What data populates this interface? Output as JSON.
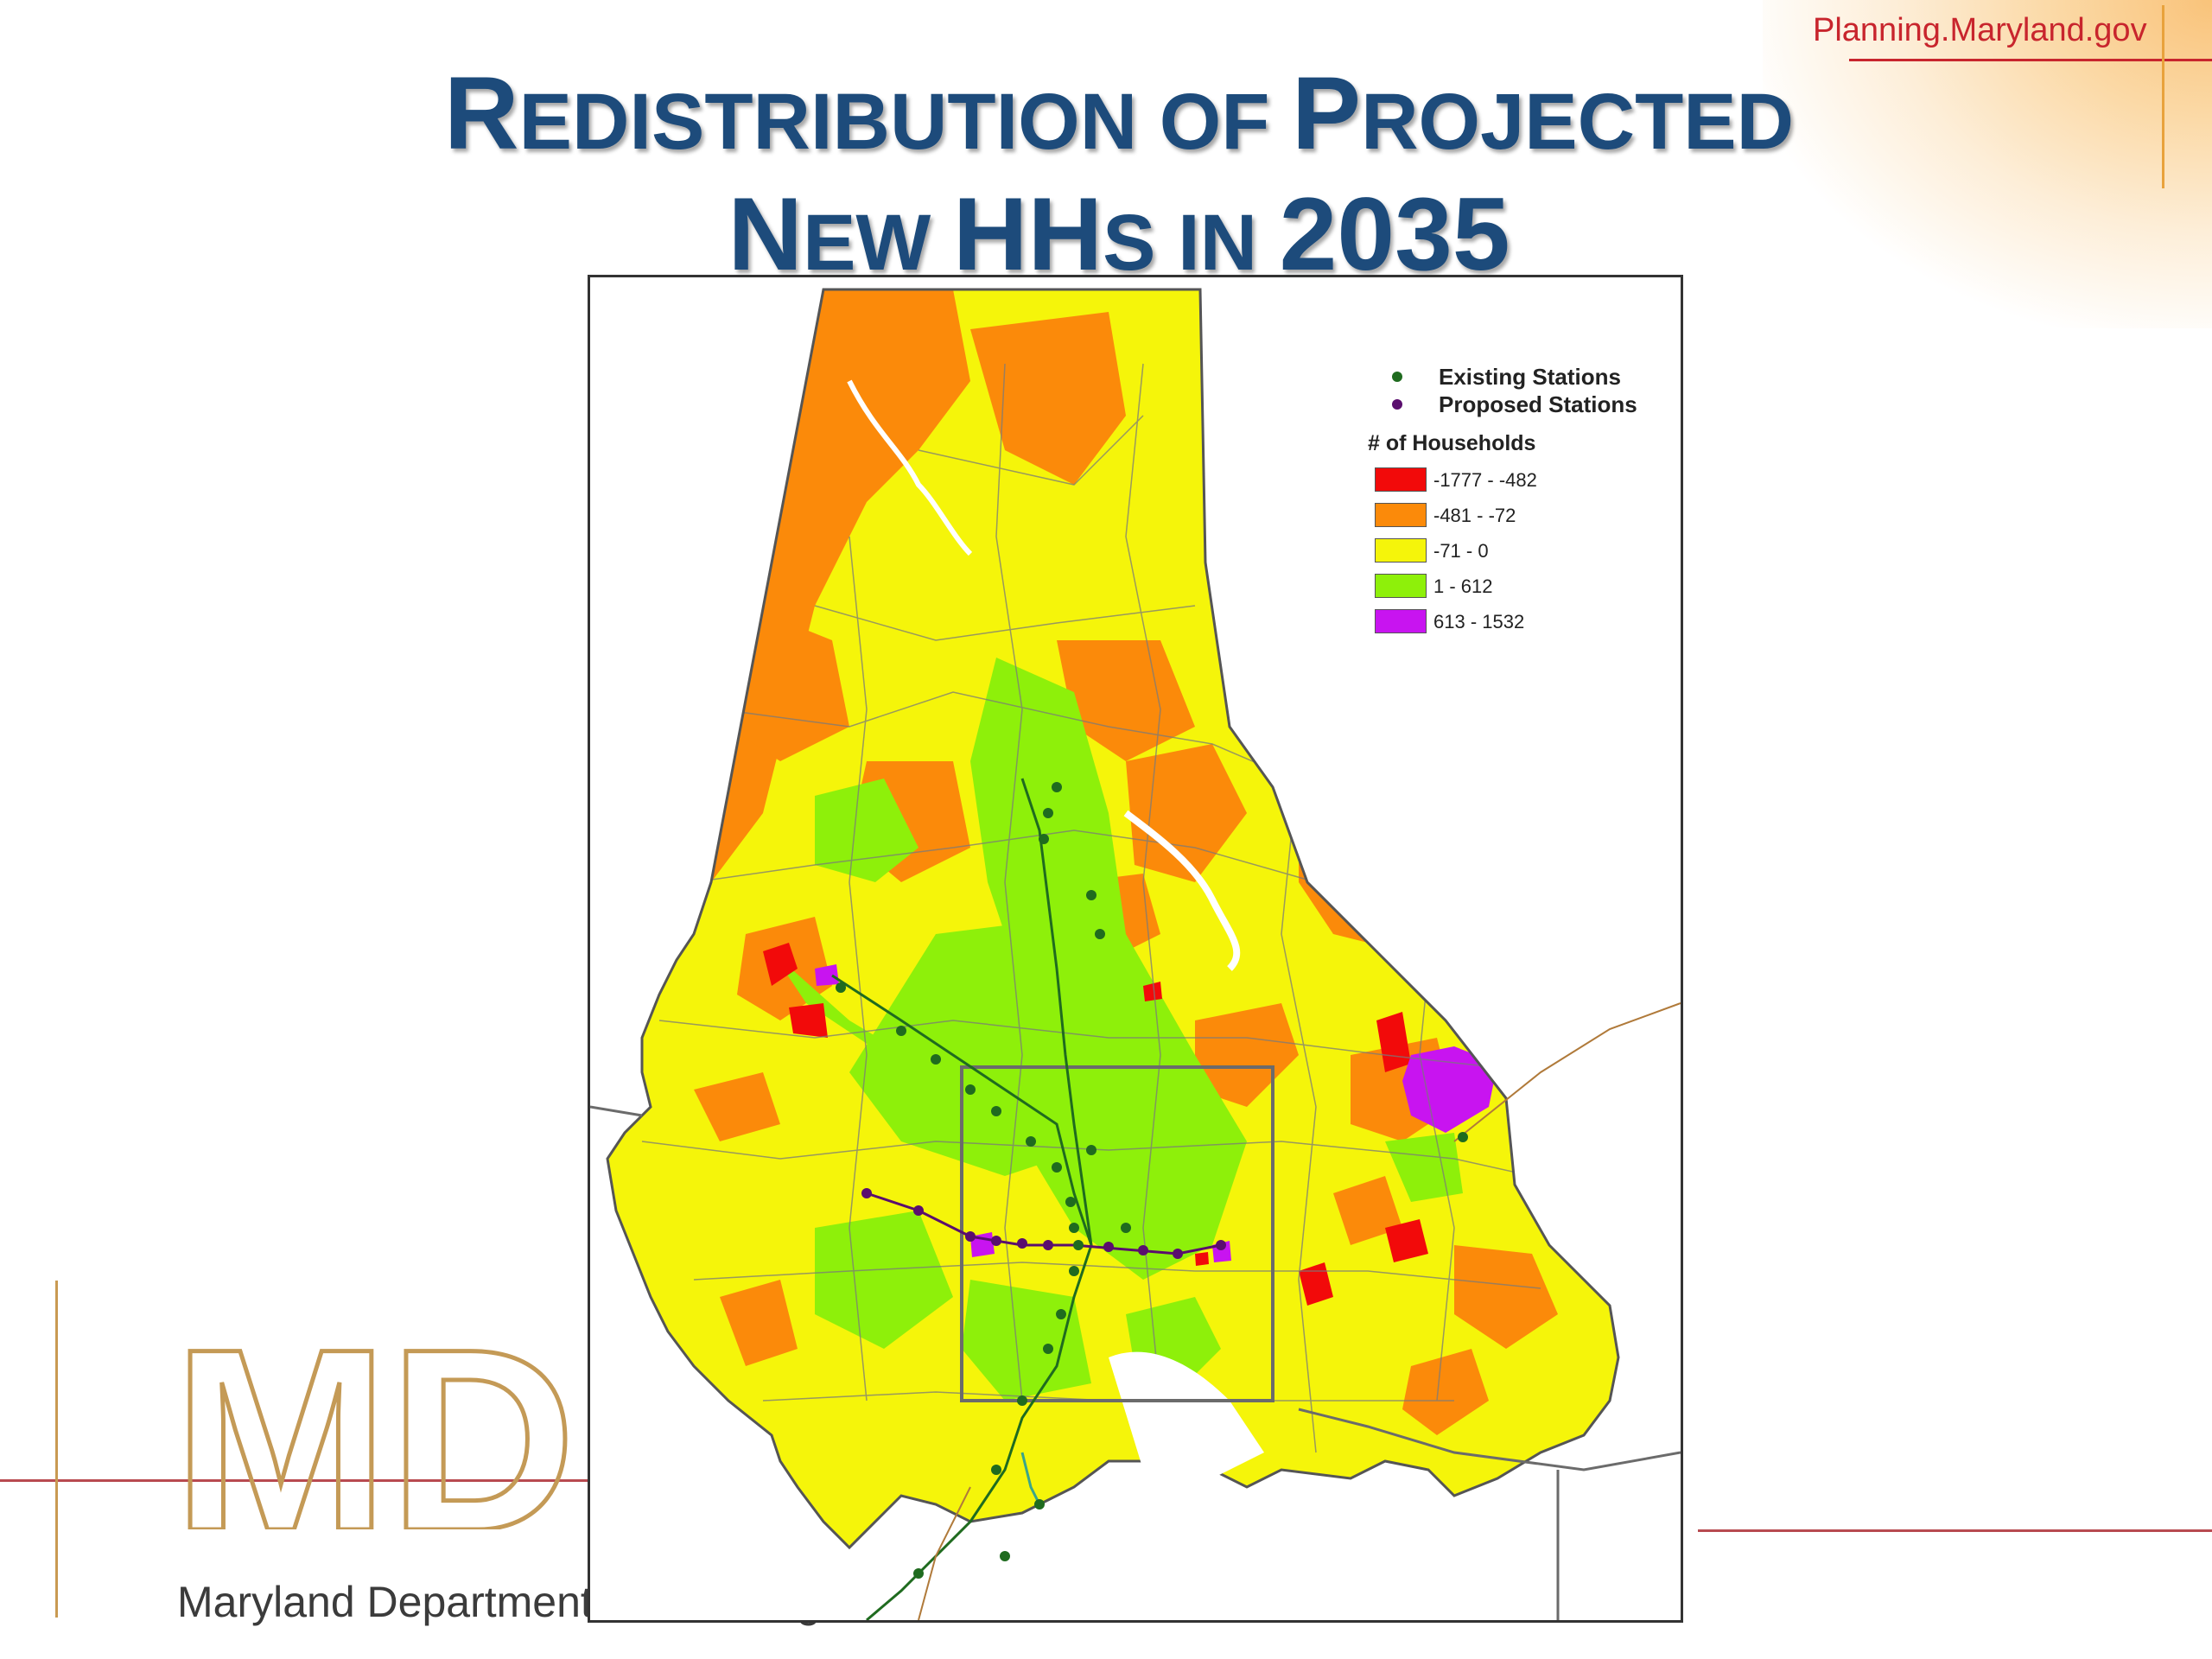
{
  "header": {
    "site_url": "Planning.Maryland.gov",
    "title_line1_a": "R",
    "title_line1_b": "EDISTRIBUTION OF ",
    "title_line1_c": "P",
    "title_line1_d": "ROJECTED",
    "title_line2_a": "N",
    "title_line2_b": "EW ",
    "title_line2_c": "HH",
    "title_line2_d": "S IN ",
    "title_line2_e": "2035"
  },
  "logo": {
    "letters": "MDP",
    "org_text": "Maryland Department of Planning"
  },
  "map": {
    "legend": {
      "existing_label": "Existing Stations",
      "proposed_label": "Proposed Stations",
      "title": "# of Households",
      "classes": [
        {
          "label": "-1777 - -482",
          "color": "#f20a0a"
        },
        {
          "label": "-481 - -72",
          "color": "#fb8a0a"
        },
        {
          "label": "-71 - 0",
          "color": "#f5f50a"
        },
        {
          "label": "1 - 612",
          "color": "#8ef00a"
        },
        {
          "label": "613 - 1532",
          "color": "#c814f0"
        }
      ],
      "existing_color": "#1f6b1f",
      "proposed_color": "#5a0e6e"
    }
  }
}
